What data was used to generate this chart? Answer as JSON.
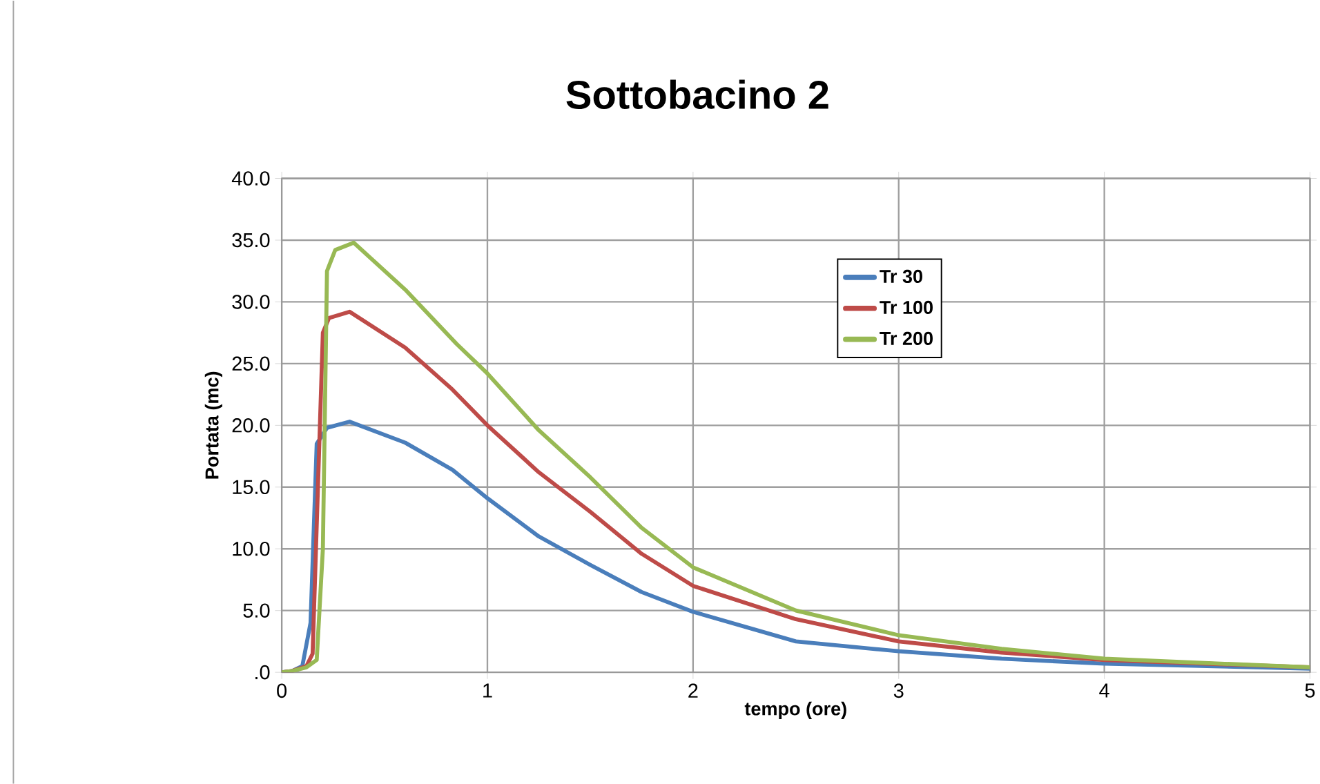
{
  "chart_data": {
    "type": "line",
    "title": "Sottobacino 2",
    "xlabel": "tempo (ore)",
    "ylabel": "Portata (mc)",
    "xlim": [
      0,
      5
    ],
    "ylim": [
      0,
      40
    ],
    "xticks": [
      0,
      1,
      2,
      3,
      4,
      5
    ],
    "yticks": [
      {
        "value": 0,
        "label": ".0"
      },
      {
        "value": 5,
        "label": "5.0"
      },
      {
        "value": 10,
        "label": "10.0"
      },
      {
        "value": 15,
        "label": "15.0"
      },
      {
        "value": 20,
        "label": "20.0"
      },
      {
        "value": 25,
        "label": "25.0"
      },
      {
        "value": 30,
        "label": "30.0"
      },
      {
        "value": 35,
        "label": "35.0"
      },
      {
        "value": 40,
        "label": "40.0"
      }
    ],
    "grid": true,
    "legend": "right",
    "marker": "none",
    "line_style": "solid",
    "series": [
      {
        "name": "Tr 30",
        "color": "#4a7ebb",
        "x": [
          0,
          0.05,
          0.1,
          0.14,
          0.17,
          0.22,
          0.33,
          0.6,
          0.83,
          1,
          1.25,
          1.5,
          1.75,
          2,
          2.5,
          3,
          3.5,
          4,
          5
        ],
        "values": [
          0,
          0.1,
          0.5,
          4,
          18.5,
          19.8,
          20.3,
          18.6,
          16.4,
          14.1,
          11,
          8.7,
          6.5,
          4.9,
          2.5,
          1.7,
          1.1,
          0.7,
          0.3
        ]
      },
      {
        "name": "Tr 100",
        "color": "#be4b48",
        "x": [
          0,
          0.05,
          0.12,
          0.15,
          0.2,
          0.23,
          0.33,
          0.6,
          0.83,
          1,
          1.25,
          1.5,
          1.75,
          2,
          2.5,
          3,
          3.5,
          4,
          5
        ],
        "values": [
          0,
          0.1,
          0.5,
          1.5,
          27.5,
          28.7,
          29.2,
          26.3,
          22.9,
          20.0,
          16.2,
          13.0,
          9.6,
          7.0,
          4.3,
          2.5,
          1.6,
          1.0,
          0.4
        ]
      },
      {
        "name": "Tr 200",
        "color": "#98b954",
        "x": [
          0,
          0.05,
          0.12,
          0.17,
          0.2,
          0.22,
          0.26,
          0.35,
          0.6,
          0.85,
          1,
          1.25,
          1.5,
          1.75,
          2,
          2.5,
          3,
          3.5,
          4,
          5
        ],
        "values": [
          0,
          0.1,
          0.4,
          1,
          10,
          32.5,
          34.2,
          34.8,
          31.0,
          26.6,
          24.2,
          19.6,
          15.8,
          11.7,
          8.5,
          5.0,
          3.0,
          1.9,
          1.1,
          0.4
        ]
      }
    ]
  }
}
